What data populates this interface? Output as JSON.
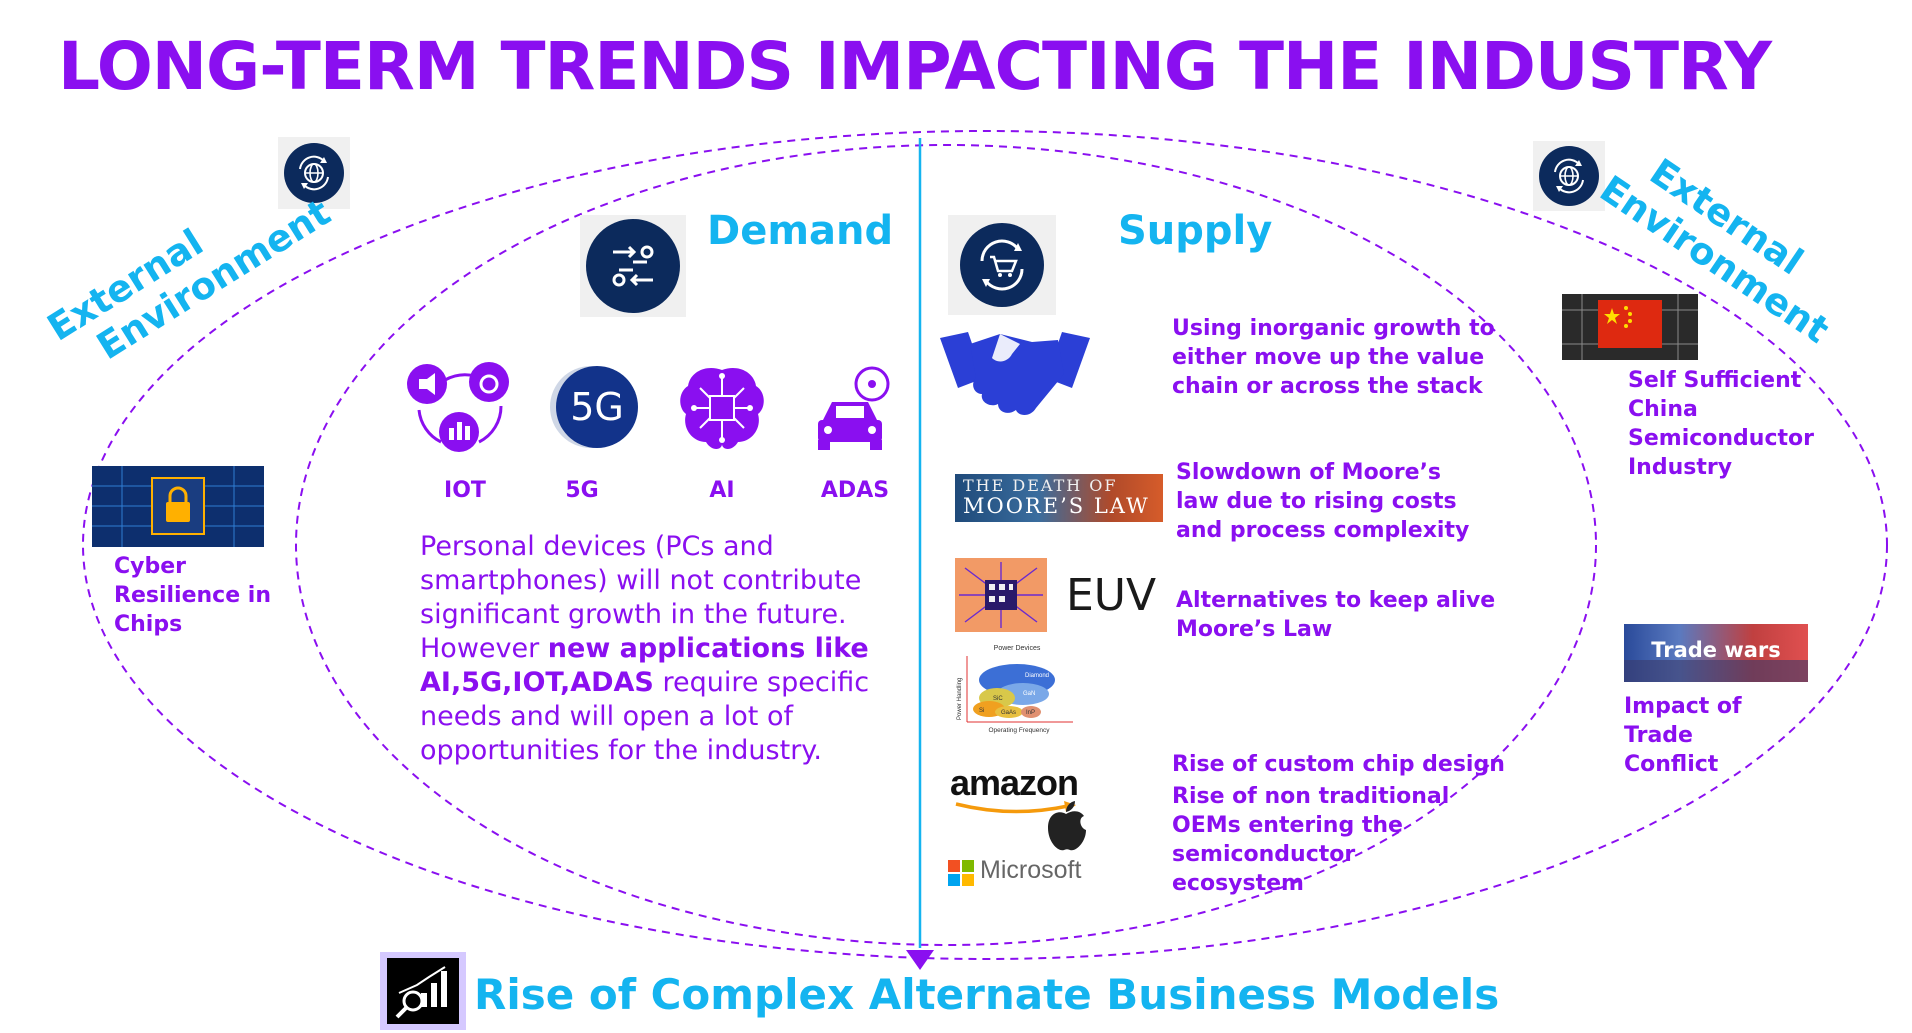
{
  "title": "LONG-TERM TRENDS IMPACTING THE INDUSTRY",
  "external_left": {
    "line1": "External",
    "line2": "Environment"
  },
  "external_right": {
    "line1": "External",
    "line2": "Environment"
  },
  "demand": {
    "heading": "Demand",
    "tech": [
      "IOT",
      "5G",
      "AI",
      "ADAS"
    ],
    "icon_text_5g": "5G",
    "paragraph": {
      "part1": "Personal devices (PCs and smartphones) will not contribute significant growth in the future. However ",
      "bold": "new applications like AI,5G,IOT,ADAS",
      "part2": " require specific needs and will open a lot of opportunities for the industry."
    }
  },
  "supply": {
    "heading": "Supply",
    "items": [
      "Using inorganic growth to either move up the value chain or across the stack",
      "Slowdown of Moore’s law due to rising costs and process complexity",
      "Alternatives to keep alive Moore’s Law",
      "Rise of custom chip design",
      "Rise of non traditional OEMs entering the semiconductor ecosystem"
    ],
    "moores_banner": {
      "line1": "THE DEATH OF",
      "line2": "MOORE’S LAW"
    },
    "euv": "EUV",
    "materials_chart": {
      "title": "Power Devices",
      "ylabel": "Power Handling",
      "xlabel": "Operating Frequency",
      "labels": [
        "Diamond",
        "GaN",
        "SiC",
        "Si",
        "GaAs",
        "InP"
      ]
    },
    "logos": {
      "amazon": "amazon",
      "microsoft": "Microsoft"
    }
  },
  "external_items": {
    "cyber": "Cyber Resilience in Chips",
    "china": "Self Sufficient China Semiconductor Industry",
    "trade": "Impact of Trade Conflict",
    "trade_banner": "Trade wars"
  },
  "bottom": "Rise of Complex Alternate Business Models",
  "colors": {
    "purple": "#8a0ff0",
    "blue": "#14b4f0",
    "navy": "#0c2a5c"
  }
}
